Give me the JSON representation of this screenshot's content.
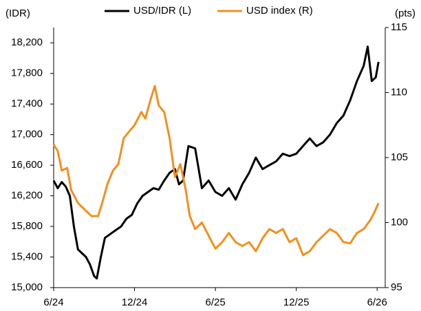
{
  "chart_data": {
    "type": "line",
    "ylabel": "(IDR)",
    "y2label": "(pts)",
    "xlim": [
      0,
      24.6
    ],
    "xticks": [
      {
        "value": 0,
        "label": "6/24"
      },
      {
        "value": 6,
        "label": "12/24"
      },
      {
        "value": 12,
        "label": "6/25"
      },
      {
        "value": 18,
        "label": "12/25"
      },
      {
        "value": 24,
        "label": "6/26"
      }
    ],
    "ylim": [
      15000,
      18400
    ],
    "yticks": [
      {
        "value": 15000,
        "label": "15,000"
      },
      {
        "value": 15400,
        "label": "15,400"
      },
      {
        "value": 15800,
        "label": "15,800"
      },
      {
        "value": 16200,
        "label": "16,200"
      },
      {
        "value": 16600,
        "label": "16,600"
      },
      {
        "value": 17000,
        "label": "17,000"
      },
      {
        "value": 17400,
        "label": "17,400"
      },
      {
        "value": 17800,
        "label": "17,800"
      },
      {
        "value": 18200,
        "label": "18,200"
      }
    ],
    "y2lim": [
      95,
      115
    ],
    "y2ticks": [
      95,
      100,
      105,
      110,
      115
    ],
    "legend": "top",
    "series": [
      {
        "name": "USD/IDR (L)",
        "color": "#000000",
        "x": [
          0,
          0.3,
          0.6,
          0.9,
          1.2,
          1.5,
          1.8,
          2.1,
          2.4,
          2.7,
          3.0,
          3.2,
          3.5,
          3.8,
          4.2,
          4.6,
          5.0,
          5.4,
          5.8,
          6.2,
          6.6,
          7.0,
          7.4,
          7.8,
          8.2,
          8.6,
          9.0,
          9.3,
          9.6,
          10.0,
          10.5,
          11.0,
          11.5,
          12.0,
          12.5,
          13.0,
          13.5,
          14.0,
          14.5,
          15.0,
          15.5,
          16.0,
          16.5,
          17.0,
          17.5,
          18.0,
          18.5,
          19.0,
          19.5,
          20.0,
          20.5,
          21.0,
          21.5,
          22.0,
          22.5,
          23.0,
          23.3,
          23.6,
          23.9,
          24.1
        ],
        "values": [
          16400,
          16300,
          16380,
          16320,
          16200,
          15800,
          15500,
          15450,
          15400,
          15300,
          15150,
          15120,
          15400,
          15650,
          15700,
          15750,
          15800,
          15900,
          15950,
          16100,
          16200,
          16250,
          16300,
          16280,
          16400,
          16500,
          16550,
          16350,
          16400,
          16850,
          16820,
          16300,
          16400,
          16250,
          16200,
          16300,
          16150,
          16350,
          16500,
          16700,
          16550,
          16600,
          16650,
          16750,
          16720,
          16750,
          16850,
          16950,
          16850,
          16900,
          17000,
          17150,
          17250,
          17450,
          17700,
          17900,
          18150,
          17700,
          17750,
          17950
        ]
      },
      {
        "name": "USD index (R)",
        "color": "#f0901e",
        "axis": "y2",
        "x": [
          0,
          0.3,
          0.6,
          1.0,
          1.3,
          1.8,
          2.3,
          2.8,
          3.3,
          3.6,
          4.0,
          4.4,
          4.8,
          5.2,
          5.6,
          6.0,
          6.5,
          6.8,
          7.2,
          7.5,
          7.8,
          8.2,
          8.6,
          9.0,
          9.4,
          9.8,
          10.1,
          10.5,
          11.0,
          11.5,
          12.0,
          12.5,
          13.0,
          13.5,
          14.0,
          14.5,
          15.0,
          15.5,
          16.0,
          16.5,
          17.0,
          17.5,
          18.0,
          18.5,
          19.0,
          19.5,
          20.0,
          20.5,
          21.0,
          21.5,
          22.0,
          22.5,
          23.0,
          23.5,
          23.8,
          24.1
        ],
        "values": [
          106,
          105.5,
          104,
          104.2,
          102.5,
          101.5,
          101,
          100.5,
          100.5,
          101.5,
          103,
          104,
          104.5,
          106.5,
          107,
          107.5,
          108.5,
          108,
          109.5,
          110.5,
          109,
          108.5,
          106.5,
          103.5,
          104.5,
          102.5,
          100.5,
          99.5,
          100,
          99,
          98,
          98.5,
          99.2,
          98.5,
          98.2,
          98.5,
          97.8,
          98.8,
          99.5,
          99.2,
          99.5,
          98.5,
          98.8,
          97.5,
          97.8,
          98.5,
          99,
          99.5,
          99.2,
          98.5,
          98.4,
          99.2,
          99.5,
          100.2,
          100.8,
          101.5
        ]
      }
    ]
  }
}
